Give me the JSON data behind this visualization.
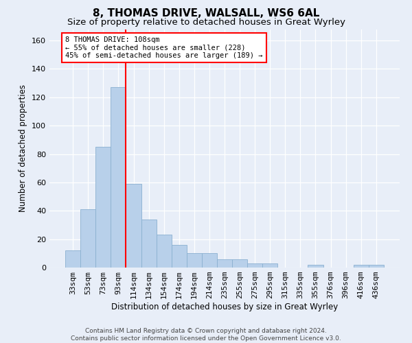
{
  "title1": "8, THOMAS DRIVE, WALSALL, WS6 6AL",
  "title2": "Size of property relative to detached houses in Great Wyrley",
  "xlabel": "Distribution of detached houses by size in Great Wyrley",
  "ylabel": "Number of detached properties",
  "categories": [
    "33sqm",
    "53sqm",
    "73sqm",
    "93sqm",
    "114sqm",
    "134sqm",
    "154sqm",
    "174sqm",
    "194sqm",
    "214sqm",
    "235sqm",
    "255sqm",
    "275sqm",
    "295sqm",
    "315sqm",
    "335sqm",
    "355sqm",
    "376sqm",
    "396sqm",
    "416sqm",
    "436sqm"
  ],
  "values": [
    12,
    41,
    85,
    127,
    59,
    34,
    23,
    16,
    10,
    10,
    6,
    6,
    3,
    3,
    0,
    0,
    2,
    0,
    0,
    2,
    2
  ],
  "bar_color": "#b8d0ea",
  "bar_edge_color": "#8ab0d0",
  "vline_color": "red",
  "vline_x_index": 4,
  "ylim_max": 168,
  "yticks": [
    0,
    20,
    40,
    60,
    80,
    100,
    120,
    140,
    160
  ],
  "annotation_line1": "8 THOMAS DRIVE: 108sqm",
  "annotation_line2": "← 55% of detached houses are smaller (228)",
  "annotation_line3": "45% of semi-detached houses are larger (189) →",
  "annotation_box_color": "white",
  "annotation_box_edge": "red",
  "footer1": "Contains HM Land Registry data © Crown copyright and database right 2024.",
  "footer2": "Contains public sector information licensed under the Open Government Licence v3.0.",
  "bg_color": "#e8eef8",
  "plot_bg_color": "#e8eef8",
  "title1_fontsize": 11,
  "title2_fontsize": 9.5,
  "xlabel_fontsize": 8.5,
  "ylabel_fontsize": 8.5,
  "tick_fontsize": 8,
  "annotation_fontsize": 7.5,
  "footer_fontsize": 6.5
}
